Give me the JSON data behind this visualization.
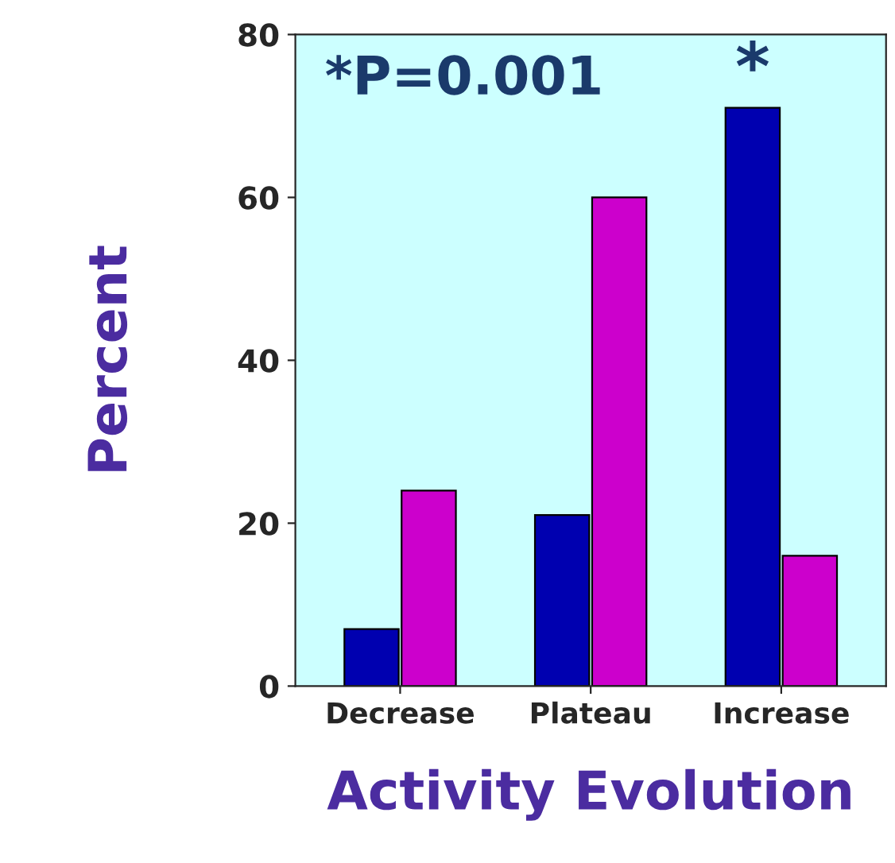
{
  "chart_data": {
    "type": "bar",
    "xlabel": "Activity Evolution",
    "ylabel": "Percent",
    "categories": [
      "Decrease",
      "Plateau",
      "Increase"
    ],
    "series": [
      {
        "color": "#0000b0",
        "values": [
          7,
          21,
          71
        ]
      },
      {
        "color": "#cc00cc",
        "values": [
          24,
          60,
          16
        ]
      }
    ],
    "ylim": [
      0,
      80
    ],
    "yticks": [
      0,
      20,
      40,
      60,
      80
    ],
    "grid": false,
    "legend": false,
    "annotations": [
      "*P=0.001",
      {
        "text": "*",
        "x": "Increase",
        "y": 71
      }
    ]
  }
}
